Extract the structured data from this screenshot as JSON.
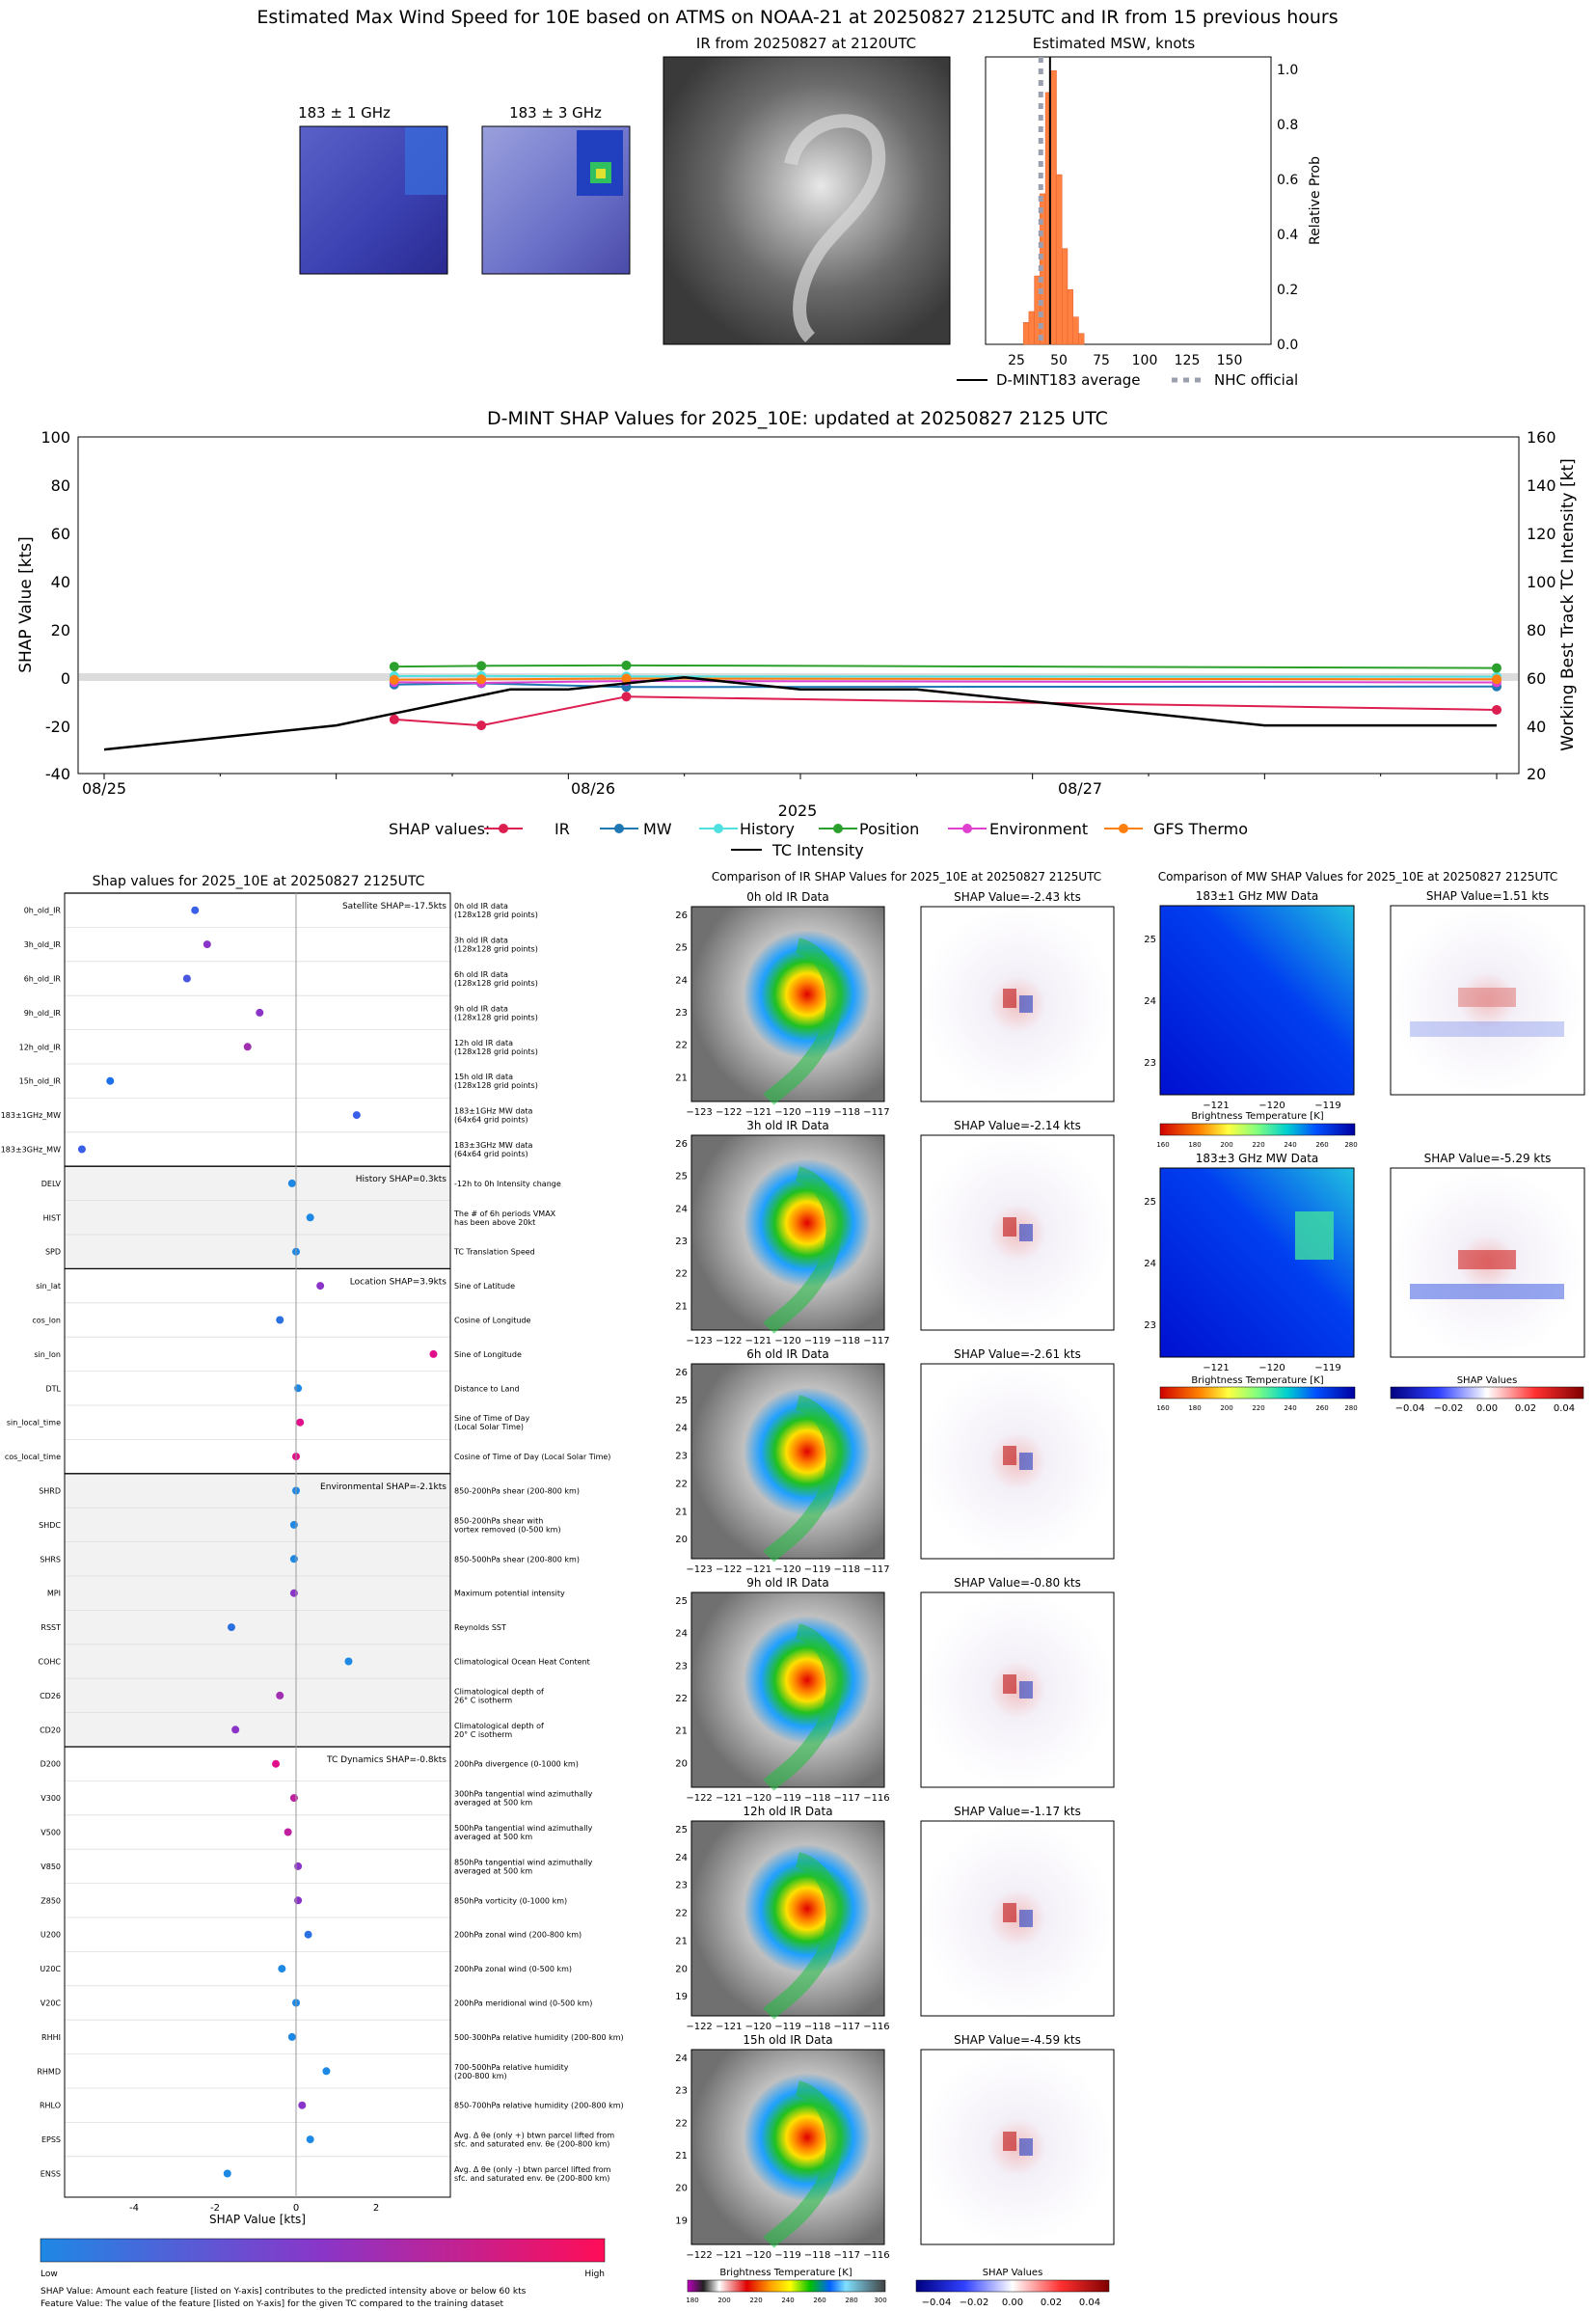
{
  "colors": {
    "ir": "#dc1e50",
    "mw": "#1f77b4",
    "history": "#4fe0e0",
    "position": "#2ca02c",
    "environment": "#e040d0",
    "gfs": "#ff7f0e",
    "intensity": "#000000",
    "hist_bar": "#ff8040",
    "shap_low": "#1e88e5",
    "shap_high": "#ff0d57"
  },
  "top": {
    "title": "Estimated Max Wind Speed for 10E based on ATMS on NOAA-21 at 20250827 2125UTC and IR from 15 previous hours",
    "mw1_title": "183 ± 1 GHz",
    "mw2_title": "183 ± 3 GHz",
    "ir_title": "IR from 20250827 at 2120UTC",
    "hist_title": "Estimated MSW, knots",
    "hist_ylabel": "Relative Prob",
    "hist_xticks": [
      "25",
      "50",
      "75",
      "100",
      "125",
      "150"
    ],
    "hist_yticks": [
      "0.0",
      "0.2",
      "0.4",
      "0.6",
      "0.8",
      "1.0"
    ],
    "legend_dmint": "D-MINT183 average",
    "legend_nhc": "NHC official",
    "chart_data": {
      "type": "bar",
      "x": [
        32,
        35,
        38,
        41,
        44,
        47,
        50,
        53,
        56,
        59,
        62
      ],
      "values": [
        0.08,
        0.12,
        0.25,
        0.55,
        0.92,
        1.0,
        0.62,
        0.35,
        0.2,
        0.1,
        0.04
      ],
      "xlim": [
        10,
        165
      ],
      "ylim": [
        0,
        1.05
      ],
      "dmint_avg": 45,
      "nhc_official": 40
    }
  },
  "middle": {
    "title": "D-MINT SHAP Values for 2025_10E: updated at 20250827 2125 UTC",
    "ylabel_left": "SHAP Value [kts]",
    "ylabel_right": "Working Best Track TC Intensity [kt]",
    "xlabel": "2025",
    "left_ticks": [
      "100",
      "80",
      "60",
      "40",
      "20",
      "0",
      "-20",
      "-40"
    ],
    "right_ticks": [
      "160",
      "140",
      "120",
      "100",
      "80",
      "60",
      "40",
      "20"
    ],
    "xtick_labels": [
      "08/25",
      "08/26",
      "08/27"
    ],
    "legend_title": "SHAP values:",
    "legend": [
      "IR",
      "MW",
      "History",
      "Position",
      "Environment",
      "GFS Thermo",
      "TC Intensity"
    ],
    "chart_data": {
      "type": "line",
      "x_hours": [
        0,
        12,
        24,
        36,
        48,
        60,
        72,
        84,
        96,
        108,
        120,
        132,
        144
      ],
      "series": [
        {
          "name": "IR",
          "x": [
            30,
            39,
            54,
            144
          ],
          "values": [
            -17.5,
            -20,
            -8,
            -13.5
          ]
        },
        {
          "name": "MW",
          "x": [
            30,
            39,
            54,
            144
          ],
          "values": [
            -3,
            -2.5,
            -4,
            -3.8
          ]
        },
        {
          "name": "History",
          "x": [
            30,
            39,
            54,
            144
          ],
          "values": [
            0.5,
            0.6,
            0.4,
            0.3
          ]
        },
        {
          "name": "Position",
          "x": [
            30,
            39,
            54,
            144
          ],
          "values": [
            4.5,
            4.8,
            5,
            3.9
          ]
        },
        {
          "name": "Environment",
          "x": [
            30,
            39,
            54,
            144
          ],
          "values": [
            -2,
            -2.3,
            -1.5,
            -2.1
          ]
        },
        {
          "name": "GFS Thermo",
          "x": [
            30,
            39,
            54,
            144
          ],
          "values": [
            -1,
            -0.8,
            -0.5,
            -0.8
          ]
        },
        {
          "name": "TC Intensity",
          "axis": "right",
          "x": [
            0,
            12,
            24,
            30,
            36,
            42,
            48,
            60,
            72,
            84,
            96,
            108,
            120,
            132,
            144
          ],
          "values": [
            30,
            35,
            40,
            45,
            50,
            55,
            55,
            60,
            55,
            55,
            50,
            45,
            40,
            40,
            40
          ]
        }
      ],
      "left_ylim": [
        -40,
        100
      ],
      "right_ylim": [
        20,
        160
      ]
    }
  },
  "shap": {
    "title": "Shap values for 2025_10E at 20250827 2125UTC",
    "xlabel": "SHAP Value [kts]",
    "xticks": [
      "-4",
      "-2",
      "0",
      "2"
    ],
    "cb_low": "Low",
    "cb_high": "High",
    "footnote1": "SHAP Value: Amount each feature [listed on Y-axis] contributes to the predicted intensity above or below 60 kts",
    "footnote2": "Feature Value: The value of the feature [listed on Y-axis] for the given TC compared to the training dataset",
    "groups": [
      {
        "title": "Satellite SHAP=-17.5kts",
        "shade": false,
        "rows": [
          {
            "name": "0h_old_IR",
            "desc": "0h old IR data\n(128x128 grid points)",
            "value": -2.5,
            "color": "#3a5fe8"
          },
          {
            "name": "3h_old_IR",
            "desc": "3h old IR data\n(128x128 grid points)",
            "value": -2.2,
            "color": "#8a35c8"
          },
          {
            "name": "6h_old_IR",
            "desc": "6h old IR data\n(128x128 grid points)",
            "value": -2.7,
            "color": "#4a55e0"
          },
          {
            "name": "9h_old_IR",
            "desc": "9h old IR data\n(128x128 grid points)",
            "value": -0.9,
            "color": "#8a35c8"
          },
          {
            "name": "12h_old_IR",
            "desc": "12h old IR data\n(128x128 grid points)",
            "value": -1.2,
            "color": "#a030b0"
          },
          {
            "name": "15h_old_IR",
            "desc": "15h old IR data\n(128x128 grid points)",
            "value": -4.6,
            "color": "#1e70e8"
          },
          {
            "name": "183±1GHz_MW",
            "desc": "183±1GHz MW data\n(64x64 grid points)",
            "value": 1.5,
            "color": "#3a5fe8"
          },
          {
            "name": "183±3GHz_MW",
            "desc": "183±3GHz MW data\n(64x64 grid points)",
            "value": -5.3,
            "color": "#3a5fe8"
          }
        ]
      },
      {
        "title": "History SHAP=0.3kts",
        "shade": true,
        "rows": [
          {
            "name": "DELV",
            "desc": "-12h to 0h Intensity change",
            "value": -0.1,
            "color": "#1e88e5"
          },
          {
            "name": "HIST",
            "desc": "The # of 6h periods VMAX\nhas been above 20kt",
            "value": 0.35,
            "color": "#1e88e5"
          },
          {
            "name": "SPD",
            "desc": "TC Translation Speed",
            "value": 0.0,
            "color": "#1e88e5"
          }
        ]
      },
      {
        "title": "Location SHAP=3.9kts",
        "shade": false,
        "rows": [
          {
            "name": "sin_lat",
            "desc": "Sine of Latitude",
            "value": 0.6,
            "color": "#8a35c8"
          },
          {
            "name": "cos_lon",
            "desc": "Cosine of Longitude",
            "value": -0.4,
            "color": "#2a70e0"
          },
          {
            "name": "sin_lon",
            "desc": "Sine of Longitude",
            "value": 3.4,
            "color": "#e0108a"
          },
          {
            "name": "DTL",
            "desc": "Distance to Land",
            "value": 0.05,
            "color": "#1e88e5"
          },
          {
            "name": "sin_local_time",
            "desc": "Sine of Time of Day\n(Local Solar Time)",
            "value": 0.1,
            "color": "#e0108a"
          },
          {
            "name": "cos_local_time",
            "desc": "Cosine of Time of Day (Local Solar Time)",
            "value": 0.0,
            "color": "#e0108a"
          }
        ]
      },
      {
        "title": "Environmental SHAP=-2.1kts",
        "shade": true,
        "rows": [
          {
            "name": "SHRD",
            "desc": "850-200hPa shear (200-800 km)",
            "value": 0.0,
            "color": "#1e88e5"
          },
          {
            "name": "SHDC",
            "desc": "850-200hPa shear with\nvortex removed (0-500 km)",
            "value": -0.05,
            "color": "#1e88e5"
          },
          {
            "name": "SHRS",
            "desc": "850-500hPa shear (200-800 km)",
            "value": -0.05,
            "color": "#1e88e5"
          },
          {
            "name": "MPI",
            "desc": "Maximum potential intensity",
            "value": -0.05,
            "color": "#8a35c8"
          },
          {
            "name": "RSST",
            "desc": "Reynolds SST",
            "value": -1.6,
            "color": "#2a70e0"
          },
          {
            "name": "COHC",
            "desc": "Climatological Ocean Heat Content",
            "value": 1.3,
            "color": "#1e88e5"
          },
          {
            "name": "CD26",
            "desc": "Climatological depth of\n26° C isotherm",
            "value": -0.4,
            "color": "#a030b0"
          },
          {
            "name": "CD20",
            "desc": "Climatological depth of\n20° C isotherm",
            "value": -1.5,
            "color": "#8a35c8"
          }
        ]
      },
      {
        "title": "TC Dynamics SHAP=-0.8kts",
        "shade": false,
        "rows": [
          {
            "name": "D200",
            "desc": "200hPa divergence (0-1000 km)",
            "value": -0.5,
            "color": "#e0108a"
          },
          {
            "name": "V300",
            "desc": "300hPa tangential wind azimuthally\naveraged at 500 km",
            "value": -0.05,
            "color": "#c020a0"
          },
          {
            "name": "V500",
            "desc": "500hPa tangential wind azimuthally\naveraged at 500 km",
            "value": -0.2,
            "color": "#c020a0"
          },
          {
            "name": "V850",
            "desc": "850hPa tangential wind azimuthally\naveraged at 500 km",
            "value": 0.05,
            "color": "#8a35c8"
          },
          {
            "name": "Z850",
            "desc": "850hPa vorticity (0-1000 km)",
            "value": 0.05,
            "color": "#8a35c8"
          },
          {
            "name": "U200",
            "desc": "200hPa zonal wind (200-800 km)",
            "value": 0.3,
            "color": "#2a70e0"
          },
          {
            "name": "U20C",
            "desc": "200hPa zonal wind (0-500 km)",
            "value": -0.35,
            "color": "#1e88e5"
          },
          {
            "name": "V20C",
            "desc": "200hPa meridional wind (0-500 km)",
            "value": 0.0,
            "color": "#1e88e5"
          },
          {
            "name": "RHHI",
            "desc": "500-300hPa relative humidity (200-800 km)",
            "value": -0.1,
            "color": "#1e88e5"
          },
          {
            "name": "RHMD",
            "desc": "700-500hPa relative humidity\n(200-800 km)",
            "value": 0.75,
            "color": "#1e88e5"
          },
          {
            "name": "RHLO",
            "desc": "850-700hPa relative humidity (200-800 km)",
            "value": 0.15,
            "color": "#8a35c8"
          },
          {
            "name": "EPSS",
            "desc": "Avg. Δ θe (only +) btwn parcel lifted from\nsfc. and saturated env. θe (200-800 km)",
            "value": 0.35,
            "color": "#1e88e5"
          },
          {
            "name": "ENSS",
            "desc": "Avg. Δ θe (only -) btwn parcel lifted from\nsfc. and saturated env. θe (200-800 km)",
            "value": -1.7,
            "color": "#1e88e5"
          }
        ]
      }
    ]
  },
  "ir_compare": {
    "title": "Comparison of IR SHAP Values for 2025_10E at 20250827 2125UTC",
    "panels": [
      {
        "title": "0h old IR Data",
        "shap": "SHAP Value=-2.43 kts",
        "yticks": [
          "26",
          "25",
          "24",
          "23",
          "22",
          "21"
        ],
        "xticks": "−123 −122 −121 −120 −119 −118 −117"
      },
      {
        "title": "3h old IR Data",
        "shap": "SHAP Value=-2.14 kts",
        "yticks": [
          "26",
          "25",
          "24",
          "23",
          "22",
          "21"
        ],
        "xticks": "−123 −122 −121 −120 −119 −118 −117"
      },
      {
        "title": "6h old IR Data",
        "shap": "SHAP Value=-2.61 kts",
        "yticks": [
          "26",
          "25",
          "24",
          "23",
          "22",
          "21",
          "20"
        ],
        "xticks": "−123 −122 −121 −120 −119 −118 −117"
      },
      {
        "title": "9h old IR Data",
        "shap": "SHAP Value=-0.80 kts",
        "yticks": [
          "25",
          "24",
          "23",
          "22",
          "21",
          "20"
        ],
        "xticks": "−122 −121 −120 −119 −118 −117 −116"
      },
      {
        "title": "12h old IR Data",
        "shap": "SHAP Value=-1.17 kts",
        "yticks": [
          "25",
          "24",
          "23",
          "22",
          "21",
          "20",
          "19"
        ],
        "xticks": "−122 −121 −120 −119 −118 −117 −116"
      },
      {
        "title": "15h old IR Data",
        "shap": "SHAP Value=-4.59 kts",
        "yticks": [
          "24",
          "23",
          "22",
          "21",
          "20",
          "19"
        ],
        "xticks": "−122 −121 −120 −119 −118 −117 −116"
      }
    ],
    "cb_title": "Brightness Temperature [K]",
    "cb_ticks": [
      "180",
      "200",
      "220",
      "240",
      "260",
      "280",
      "300"
    ],
    "shap_cb_title": "SHAP Values",
    "shap_cb_ticks": [
      "−0.04",
      "−0.02",
      "0.00",
      "0.02",
      "0.04"
    ]
  },
  "mw_compare": {
    "title": "Comparison of MW SHAP Values for 2025_10E at 20250827 2125UTC",
    "panels": [
      {
        "title": "183±1 GHz MW Data",
        "shap": "SHAP Value=1.51 kts"
      },
      {
        "title": "183±3 GHz MW Data",
        "shap": "SHAP Value=-5.29 kts"
      }
    ],
    "yticks": [
      "25",
      "24",
      "23"
    ],
    "xticks": [
      "−121",
      "−120",
      "−119"
    ],
    "cb_title": "Brightness Temperature [K]",
    "cb_ticks": [
      "160",
      "180",
      "200",
      "220",
      "240",
      "260",
      "280"
    ],
    "shap_cb_title": "SHAP Values",
    "shap_cb_ticks": [
      "−0.04",
      "−0.02",
      "0.00",
      "0.02",
      "0.04"
    ]
  }
}
